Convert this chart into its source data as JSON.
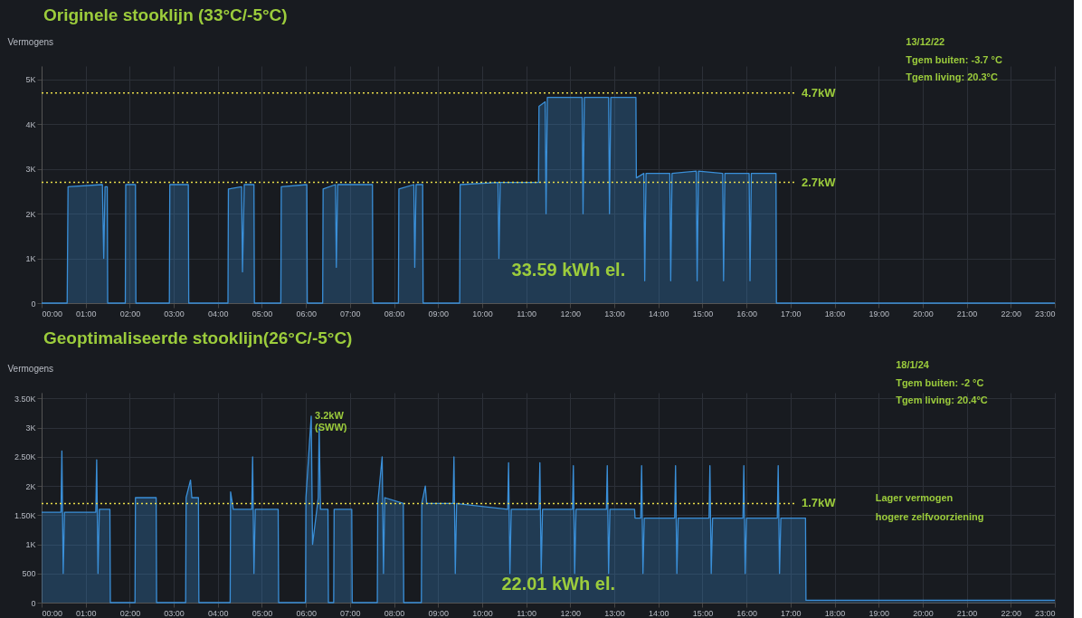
{
  "chart_data": [
    {
      "type": "area",
      "title": "Originele stooklijn (33°C/-5°C)",
      "ylabel": "Vermogens",
      "color": "#3a8fd8",
      "grid": true,
      "x": [
        0,
        0.58,
        0.6,
        1.38,
        1.41,
        1.44,
        1.49,
        1.5,
        1.9,
        1.91,
        2.13,
        2.14,
        2.9,
        2.91,
        3.33,
        3.34,
        4.23,
        4.24,
        4.54,
        4.56,
        4.6,
        4.82,
        4.83,
        5.43,
        5.44,
        6.02,
        6.03,
        6.38,
        6.39,
        6.67,
        6.69,
        6.72,
        7.51,
        7.52,
        8.1,
        8.11,
        8.45,
        8.47,
        8.5,
        8.65,
        8.66,
        9.49,
        9.5,
        10.36,
        10.38,
        10.41,
        11.28,
        11.29,
        11.43,
        11.45,
        11.48,
        12.27,
        12.29,
        12.32,
        12.87,
        12.89,
        12.92,
        13.49,
        13.5,
        13.67,
        13.69,
        13.72,
        14.26,
        14.28,
        14.31,
        14.86,
        14.88,
        14.91,
        15.46,
        15.48,
        15.51,
        16.06,
        16.08,
        16.11,
        16.67,
        16.68,
        23
      ],
      "values": [
        0,
        0,
        2600,
        2650,
        1000,
        2600,
        2600,
        0,
        0,
        2650,
        2650,
        0,
        0,
        2650,
        2650,
        0,
        0,
        2550,
        2600,
        700,
        2650,
        2650,
        0,
        0,
        2600,
        2650,
        0,
        0,
        2550,
        2650,
        800,
        2650,
        2650,
        0,
        0,
        2550,
        2650,
        800,
        2650,
        2650,
        0,
        0,
        2650,
        2700,
        1000,
        2700,
        2700,
        4400,
        4500,
        2000,
        4600,
        4600,
        2000,
        4600,
        4600,
        2000,
        4600,
        4600,
        2800,
        2900,
        500,
        2900,
        2900,
        500,
        2900,
        2950,
        500,
        2950,
        2900,
        500,
        2900,
        2900,
        500,
        2900,
        2900,
        0,
        0
      ],
      "xlim": [
        0,
        23
      ],
      "xticks": [
        {
          "value": 0,
          "label": "00:00"
        },
        {
          "value": 1,
          "label": "01:00"
        },
        {
          "value": 2,
          "label": "02:00"
        },
        {
          "value": 3,
          "label": "03:00"
        },
        {
          "value": 4,
          "label": "04:00"
        },
        {
          "value": 5,
          "label": "05:00"
        },
        {
          "value": 6,
          "label": "06:00"
        },
        {
          "value": 7,
          "label": "07:00"
        },
        {
          "value": 8,
          "label": "08:00"
        },
        {
          "value": 9,
          "label": "09:00"
        },
        {
          "value": 10,
          "label": "10:00"
        },
        {
          "value": 11,
          "label": "11:00"
        },
        {
          "value": 12,
          "label": "12:00"
        },
        {
          "value": 13,
          "label": "13:00"
        },
        {
          "value": 14,
          "label": "14:00"
        },
        {
          "value": 15,
          "label": "15:00"
        },
        {
          "value": 16,
          "label": "16:00"
        },
        {
          "value": 17,
          "label": "17:00"
        },
        {
          "value": 18,
          "label": "18:00"
        },
        {
          "value": 19,
          "label": "19:00"
        },
        {
          "value": 20,
          "label": "20:00"
        },
        {
          "value": 21,
          "label": "21:00"
        },
        {
          "value": 22,
          "label": "22:00"
        },
        {
          "value": 23,
          "label": "23:00"
        }
      ],
      "ylim": [
        0,
        5300
      ],
      "yticks": [
        0,
        {
          "value": 1000,
          "label": "1K"
        },
        {
          "value": 2000,
          "label": "2K"
        },
        {
          "value": 3000,
          "label": "3K"
        },
        {
          "value": 4000,
          "label": "4K"
        },
        {
          "value": 5000,
          "label": "5K"
        }
      ],
      "ref_lines": [
        {
          "axis": "y",
          "value": 4700,
          "label": "4.7kW",
          "color": "#e8dc4a",
          "line_style": "dotted"
        },
        {
          "axis": "y",
          "value": 2700,
          "label": "2.7kW",
          "color": "#e8dc4a",
          "line_style": "dotted"
        }
      ],
      "annotations": [
        "33.59 kWh el.",
        "13/12/22",
        "Tgem buiten: -3.7 °C",
        "Tgem living: 20.3°C"
      ]
    },
    {
      "type": "area",
      "title": "Geoptimaliseerde stooklijn(26°C/-5°C)",
      "ylabel": "Vermogens",
      "color": "#3a8fd8",
      "grid": true,
      "x": [
        0,
        0.44,
        0.46,
        0.49,
        0.52,
        1.23,
        1.25,
        1.28,
        1.31,
        1.55,
        1.56,
        2.12,
        2.13,
        2.6,
        2.61,
        3.27,
        3.28,
        3.38,
        3.41,
        3.56,
        3.57,
        4.28,
        4.29,
        4.35,
        4.77,
        4.79,
        4.82,
        4.85,
        5.37,
        5.38,
        5.99,
        6.0,
        6.12,
        6.15,
        6.28,
        6.3,
        6.33,
        6.5,
        6.51,
        6.63,
        6.64,
        7.04,
        7.05,
        7.62,
        7.63,
        7.73,
        7.76,
        7.79,
        8.21,
        8.22,
        8.62,
        8.63,
        8.71,
        8.74,
        9.34,
        9.36,
        9.39,
        9.42,
        10.58,
        10.6,
        10.63,
        10.66,
        11.29,
        11.31,
        11.34,
        11.37,
        12.05,
        12.07,
        12.1,
        12.13,
        12.82,
        12.84,
        12.87,
        12.9,
        13.46,
        13.47,
        13.6,
        13.62,
        13.65,
        13.68,
        14.37,
        14.39,
        14.42,
        14.45,
        15.15,
        15.17,
        15.2,
        15.23,
        15.92,
        15.94,
        15.97,
        16.0,
        16.7,
        16.72,
        16.75,
        16.78,
        17.34,
        17.35,
        23
      ],
      "values": [
        1550,
        1550,
        2600,
        500,
        1550,
        1550,
        2450,
        500,
        1600,
        1600,
        0,
        0,
        1800,
        1800,
        0,
        0,
        1800,
        2100,
        1800,
        1800,
        0,
        0,
        1900,
        1600,
        1600,
        2500,
        500,
        1600,
        1600,
        0,
        0,
        1800,
        3200,
        1000,
        1800,
        3000,
        1600,
        1600,
        0,
        0,
        1600,
        1600,
        0,
        0,
        1700,
        2500,
        500,
        1800,
        1700,
        0,
        0,
        1700,
        2000,
        1700,
        1700,
        2500,
        500,
        1700,
        1600,
        2400,
        500,
        1600,
        1600,
        2400,
        500,
        1600,
        1600,
        2350,
        500,
        1600,
        1600,
        2350,
        500,
        1600,
        1600,
        1450,
        1450,
        2350,
        500,
        1450,
        1450,
        2350,
        500,
        1450,
        1450,
        2350,
        500,
        1450,
        1450,
        2350,
        500,
        1450,
        1450,
        2350,
        500,
        1450,
        1450,
        40,
        40
      ],
      "xlim": [
        0,
        23
      ],
      "xticks": [
        {
          "value": 0,
          "label": "00:00"
        },
        {
          "value": 1,
          "label": "01:00"
        },
        {
          "value": 2,
          "label": "02:00"
        },
        {
          "value": 3,
          "label": "03:00"
        },
        {
          "value": 4,
          "label": "04:00"
        },
        {
          "value": 5,
          "label": "05:00"
        },
        {
          "value": 6,
          "label": "06:00"
        },
        {
          "value": 7,
          "label": "07:00"
        },
        {
          "value": 8,
          "label": "08:00"
        },
        {
          "value": 9,
          "label": "09:00"
        },
        {
          "value": 10,
          "label": "10:00"
        },
        {
          "value": 11,
          "label": "11:00"
        },
        {
          "value": 12,
          "label": "12:00"
        },
        {
          "value": 13,
          "label": "13:00"
        },
        {
          "value": 14,
          "label": "14:00"
        },
        {
          "value": 15,
          "label": "15:00"
        },
        {
          "value": 16,
          "label": "16:00"
        },
        {
          "value": 17,
          "label": "17:00"
        },
        {
          "value": 18,
          "label": "18:00"
        },
        {
          "value": 19,
          "label": "19:00"
        },
        {
          "value": 20,
          "label": "20:00"
        },
        {
          "value": 21,
          "label": "21:00"
        },
        {
          "value": 22,
          "label": "22:00"
        },
        {
          "value": 23,
          "label": "23:00"
        }
      ],
      "ylim": [
        0,
        3600
      ],
      "yticks": [
        0,
        500,
        {
          "value": 1000,
          "label": "1K"
        },
        {
          "value": 1500,
          "label": "1.50K"
        },
        {
          "value": 2000,
          "label": "2K"
        },
        {
          "value": 2500,
          "label": "2.50K"
        },
        {
          "value": 3000,
          "label": "3K"
        },
        {
          "value": 3500,
          "label": "3.50K"
        }
      ],
      "ref_lines": [
        {
          "axis": "y",
          "value": 1700,
          "label": "1.7kW",
          "color": "#e8dc4a",
          "line_style": "dotted"
        }
      ],
      "annotations": [
        "22.01 kWh el.",
        "18/1/24",
        "Tgem buiten: -2 °C",
        "Tgem living: 20.4°C",
        "Lager vermogen",
        "hogere zelfvoorziening",
        {
          "text": "3.2kW\n(SWW)",
          "x": 6.12,
          "y": 3200
        }
      ]
    }
  ]
}
